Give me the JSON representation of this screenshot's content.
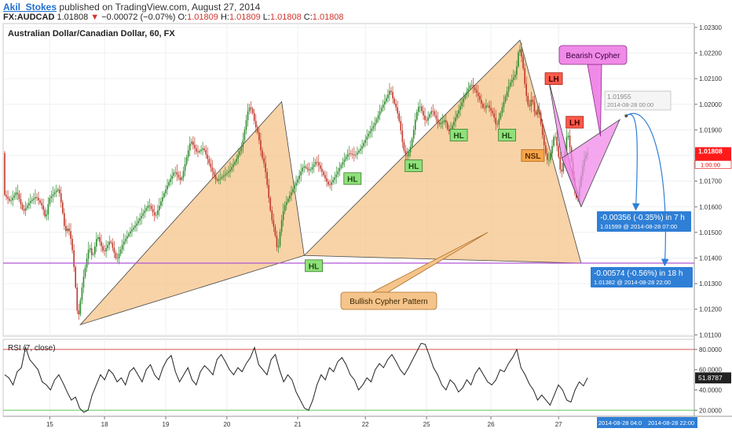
{
  "header": {
    "author": "Akil_Stokes",
    "published": "published on TradingView.com, August 27, 2014",
    "symbol": "FX:AUDCAD",
    "last": "1.01808",
    "change_arrow": "▼",
    "change": "−0.00072 (−0.07%)",
    "o_label": "O:",
    "o_value": "1.01809",
    "h_label": "H:",
    "h_value": "1.01809",
    "l_label": "L:",
    "l_value": "1.01808",
    "c_label": "C:",
    "c_value": "1.01808"
  },
  "colors": {
    "bull": "#2e8b2e",
    "bear": "#c0392b",
    "bullish_fill": "#f5c48a",
    "bearish_fill": "#f08ae8",
    "purple_line": "#b056d6",
    "callout_blue": "#2f7fd6",
    "price_badge": "#ff1a1a"
  },
  "chart_data": [
    {
      "type": "candlestick",
      "title": "Australian Dollar/Canadian Dollar, 60, FX",
      "x_tick_labels": [
        "15",
        "18",
        "19",
        "20",
        "21",
        "22",
        "25",
        "26",
        "27"
      ],
      "y_tick_labels": [
        "1.02300",
        "1.02200",
        "1.02100",
        "1.02000",
        "1.01900",
        "1.01800",
        "1.01700",
        "1.01600",
        "1.01500",
        "1.01400",
        "1.01300",
        "1.01200",
        "1.01100"
      ],
      "ylim": [
        1.01095,
        1.02315
      ],
      "grid": true,
      "last_price": "1.01808",
      "countdown": "1:00:00",
      "horizontal_line": 1.0138,
      "price_path": [
        [
          0,
          1.0165
        ],
        [
          4,
          1.0162
        ],
        [
          8,
          1.0166
        ],
        [
          12,
          1.0158
        ],
        [
          16,
          1.0162
        ],
        [
          20,
          1.0164
        ],
        [
          24,
          1.016
        ],
        [
          26,
          1.0155
        ],
        [
          28,
          1.0163
        ],
        [
          32,
          1.0166
        ],
        [
          34,
          1.0167
        ],
        [
          36,
          1.016
        ],
        [
          38,
          1.015
        ],
        [
          40,
          1.0152
        ],
        [
          42,
          1.0146
        ],
        [
          43,
          1.014
        ],
        [
          44,
          1.0133
        ],
        [
          45,
          1.0124
        ],
        [
          46,
          1.0115
        ],
        [
          47,
          1.0121
        ],
        [
          49,
          1.0131
        ],
        [
          51,
          1.0138
        ],
        [
          53,
          1.0145
        ],
        [
          55,
          1.014
        ],
        [
          58,
          1.0149
        ],
        [
          62,
          1.0142
        ],
        [
          66,
          1.0147
        ],
        [
          70,
          1.0139
        ],
        [
          74,
          1.0146
        ],
        [
          78,
          1.015
        ],
        [
          82,
          1.0153
        ],
        [
          86,
          1.0157
        ],
        [
          90,
          1.0161
        ],
        [
          94,
          1.0156
        ],
        [
          98,
          1.0163
        ],
        [
          102,
          1.0169
        ],
        [
          106,
          1.0174
        ],
        [
          110,
          1.017
        ],
        [
          113,
          1.0178
        ],
        [
          116,
          1.0186
        ],
        [
          120,
          1.0181
        ],
        [
          124,
          1.0183
        ],
        [
          128,
          1.0176
        ],
        [
          132,
          1.017
        ],
        [
          136,
          1.0172
        ],
        [
          140,
          1.0174
        ],
        [
          144,
          1.0178
        ],
        [
          148,
          1.0184
        ],
        [
          150,
          1.0192
        ],
        [
          152,
          1.0199
        ],
        [
          154,
          1.0198
        ],
        [
          156,
          1.0192
        ],
        [
          158,
          1.0188
        ],
        [
          160,
          1.018
        ],
        [
          162,
          1.0176
        ],
        [
          164,
          1.0166
        ],
        [
          166,
          1.0156
        ],
        [
          168,
          1.0151
        ],
        [
          170,
          1.0142
        ],
        [
          172,
          1.0153
        ],
        [
          174,
          1.016
        ],
        [
          178,
          1.0165
        ],
        [
          182,
          1.017
        ],
        [
          186,
          1.0176
        ],
        [
          190,
          1.0174
        ],
        [
          194,
          1.0178
        ],
        [
          198,
          1.0173
        ],
        [
          202,
          1.0168
        ],
        [
          206,
          1.0172
        ],
        [
          210,
          1.0177
        ],
        [
          214,
          1.0181
        ],
        [
          218,
          1.018
        ],
        [
          222,
          1.0183
        ],
        [
          226,
          1.0188
        ],
        [
          230,
          1.0192
        ],
        [
          234,
          1.0198
        ],
        [
          238,
          1.0203
        ],
        [
          240,
          1.0206
        ],
        [
          242,
          1.0201
        ],
        [
          244,
          1.0198
        ],
        [
          246,
          1.0192
        ],
        [
          248,
          1.0183
        ],
        [
          250,
          1.0179
        ],
        [
          252,
          1.0182
        ],
        [
          254,
          1.0188
        ],
        [
          256,
          1.0196
        ],
        [
          258,
          1.02
        ],
        [
          262,
          1.0193
        ],
        [
          266,
          1.0198
        ],
        [
          270,
          1.0192
        ],
        [
          274,
          1.0194
        ],
        [
          276,
          1.0189
        ],
        [
          278,
          1.0191
        ],
        [
          282,
          1.0197
        ],
        [
          286,
          1.0203
        ],
        [
          290,
          1.0208
        ],
        [
          294,
          1.0204
        ],
        [
          298,
          1.0198
        ],
        [
          300,
          1.02
        ],
        [
          304,
          1.0196
        ],
        [
          306,
          1.0191
        ],
        [
          310,
          1.02
        ],
        [
          314,
          1.0208
        ],
        [
          318,
          1.0212
        ],
        [
          320,
          1.0223
        ],
        [
          322,
          1.0217
        ],
        [
          324,
          1.0205
        ],
        [
          326,
          1.0198
        ],
        [
          328,
          1.0203
        ],
        [
          330,
          1.0195
        ],
        [
          332,
          1.0199
        ],
        [
          334,
          1.019
        ],
        [
          336,
          1.0182
        ],
        [
          338,
          1.0177
        ],
        [
          340,
          1.0182
        ],
        [
          342,
          1.0189
        ],
        [
          344,
          1.0182
        ],
        [
          346,
          1.0172
        ],
        [
          348,
          1.0179
        ],
        [
          350,
          1.019
        ],
        [
          352,
          1.0181
        ],
        [
          354,
          1.0168
        ],
        [
          356,
          1.0162
        ],
        [
          358,
          1.017
        ],
        [
          360,
          1.0178
        ],
        [
          362,
          1.0181
        ]
      ],
      "bullish_cypher": {
        "X": [
          47,
          1.0114
        ],
        "A": [
          172,
          1.0201
        ],
        "B": [
          186,
          1.0141
        ],
        "C": [
          320,
          1.0225
        ],
        "D": [
          358,
          1.0138
        ]
      },
      "bearish_cypher": {
        "X": [
          338,
          1.0209
        ],
        "A": [
          346,
          1.0179
        ],
        "B": [
          358,
          1.016
        ],
        "C": [
          382,
          1.0194
        ]
      },
      "forecast_point": {
        "x": 386,
        "y": 1.01955
      },
      "forecast_target_1": {
        "x": 392,
        "y": 1.01599
      },
      "forecast_target_2": {
        "x": 410,
        "y": 1.01382
      },
      "annotations": [
        {
          "text": "HL",
          "x": 192,
          "y": 1.0137,
          "style": "green"
        },
        {
          "text": "HL",
          "x": 216,
          "y": 1.0171,
          "style": "green"
        },
        {
          "text": "HL",
          "x": 254,
          "y": 1.0176,
          "style": "green"
        },
        {
          "text": "HL",
          "x": 282,
          "y": 1.0188,
          "style": "green"
        },
        {
          "text": "HL",
          "x": 312,
          "y": 1.0188,
          "style": "green"
        },
        {
          "text": "NSL",
          "x": 328,
          "y": 1.018,
          "style": "orange"
        },
        {
          "text": "LH",
          "x": 341,
          "y": 1.021,
          "style": "red"
        },
        {
          "text": "LH",
          "x": 354,
          "y": 1.0193,
          "style": "red"
        }
      ],
      "callouts": {
        "bullish": "Bullish Cypher Pattern",
        "bearish": "Bearish Cypher",
        "tooltip_price": "1.01955",
        "tooltip_time": "2014-08-28 00:00",
        "target1_main": "-0.00356 (-0.35%) in 7 h",
        "target1_sub": "1.01599 @ 2014-08-28 07:00",
        "target2_main": "-0.00574 (-0.56%) in 18 h",
        "target2_sub": "1.01382 @ 2014-08-28 22:00"
      }
    },
    {
      "type": "line",
      "title": "RSI (7, close)",
      "y_tick_labels": [
        "80.0000",
        "60.0000",
        "40.0000",
        "20.0000"
      ],
      "ylim": [
        14,
        90
      ],
      "upper_band": 80,
      "lower_band": 20,
      "last_value": "51.8787",
      "values": [
        55,
        52,
        45,
        58,
        62,
        82,
        70,
        65,
        60,
        48,
        45,
        40,
        50,
        55,
        47,
        38,
        30,
        33,
        22,
        18,
        20,
        35,
        45,
        55,
        50,
        60,
        56,
        48,
        52,
        45,
        58,
        62,
        55,
        48,
        60,
        65,
        55,
        50,
        62,
        70,
        74,
        58,
        48,
        55,
        62,
        50,
        45,
        58,
        64,
        60,
        55,
        70,
        75,
        68,
        60,
        55,
        62,
        58,
        66,
        72,
        82,
        65,
        60,
        55,
        70,
        75,
        60,
        48,
        55,
        50,
        38,
        30,
        22,
        20,
        30,
        45,
        55,
        50,
        62,
        58,
        68,
        72,
        65,
        55,
        50,
        40,
        45,
        52,
        48,
        60,
        66,
        62,
        70,
        75,
        68,
        60,
        55,
        62,
        70,
        78,
        86,
        85,
        74,
        62,
        55,
        45,
        40,
        50,
        46,
        38,
        42,
        50,
        45,
        56,
        62,
        55,
        48,
        45,
        50,
        60,
        58,
        66,
        72,
        80,
        62,
        55,
        46,
        40,
        30,
        35,
        30,
        25,
        35,
        45,
        40,
        30,
        28,
        40,
        48,
        44,
        52
      ]
    }
  ],
  "x_axis_dates": [
    "2014-08-28 04:0",
    "2014-08-28 22:00"
  ]
}
